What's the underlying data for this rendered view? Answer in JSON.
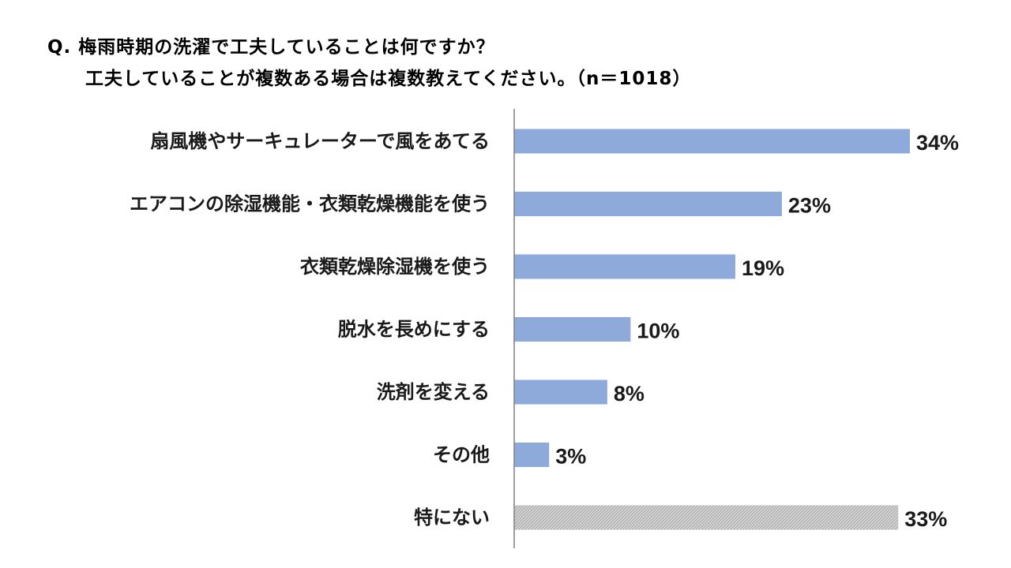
{
  "title": {
    "line1": "Q. 梅雨時期の洗濯で工夫していることは何ですか？",
    "line2": "工夫していることが複数ある場合は複数教えてください。（n＝1018）"
  },
  "colors": {
    "bar": "#8eaadb",
    "bar_none": "#c8c8c8",
    "axis": "#7f7f7f"
  },
  "chart_data": {
    "type": "bar",
    "orientation": "horizontal",
    "title": "Q. 梅雨時期の洗濯で工夫していることは何ですか？ 工夫していることが複数ある場合は複数教えてください。（n＝1018）",
    "categories": [
      "扇風機やサーキュレーターで風をあてる",
      "エアコンの除湿機能・衣類乾燥機能を使う",
      "衣類乾燥除湿機を使う",
      "脱水を長めにする",
      "洗剤を変える",
      "その他",
      "特にない"
    ],
    "values": [
      34,
      23,
      19,
      10,
      8,
      3,
      33
    ],
    "value_labels": [
      "34%",
      "23%",
      "19%",
      "10%",
      "8%",
      "3%",
      "33%"
    ],
    "unit": "%",
    "xlim": [
      0,
      34
    ],
    "grid": false,
    "legend": "none"
  }
}
